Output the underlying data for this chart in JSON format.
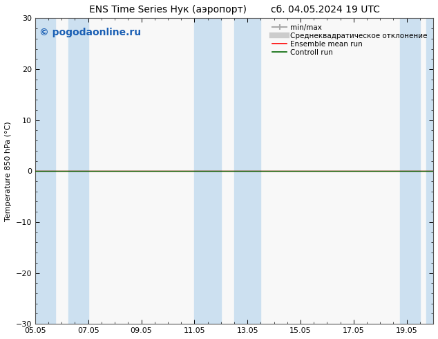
{
  "title_left": "ENS Time Series Нук (аэропорт)",
  "title_right": "сб. 04.05.2024 19 UTC",
  "ylabel": "Temperature 850 hPa (°C)",
  "watermark": "© pogodaonline.ru",
  "ylim": [
    -30,
    30
  ],
  "yticks": [
    -30,
    -20,
    -10,
    0,
    10,
    20,
    30
  ],
  "x_min": 0,
  "x_max": 15,
  "x_tick_labels": [
    "05.05",
    "07.05",
    "09.05",
    "11.05",
    "13.05",
    "15.05",
    "17.05",
    "19.05"
  ],
  "x_tick_positions": [
    0,
    2,
    4,
    6,
    8,
    10,
    12,
    14
  ],
  "shaded_bands": [
    [
      0.0,
      0.75
    ],
    [
      1.25,
      2.0
    ],
    [
      6.0,
      7.0
    ],
    [
      7.5,
      8.5
    ],
    [
      13.75,
      14.5
    ],
    [
      14.75,
      15.0
    ]
  ],
  "shade_color": "#cce0f0",
  "background_color": "#ffffff",
  "plot_bg_color": "#f8f8f8",
  "zero_line_color": "#000000",
  "ensemble_mean_color": "#ff0000",
  "control_run_color": "#006600",
  "legend_entries": [
    {
      "label": "min/max",
      "color": "#aaaaaa",
      "lw": 1.5,
      "style": "minmax"
    },
    {
      "label": "Среднеквадратическое отклонение",
      "color": "#cccccc",
      "lw": 5
    },
    {
      "label": "Ensemble mean run",
      "color": "#ff0000",
      "lw": 1.2
    },
    {
      "label": "Controll run",
      "color": "#006600",
      "lw": 1.2
    }
  ],
  "title_fontsize": 10,
  "label_fontsize": 8,
  "tick_fontsize": 8,
  "watermark_fontsize": 10,
  "watermark_color": "#1a5fb4",
  "legend_fontsize": 7.5
}
